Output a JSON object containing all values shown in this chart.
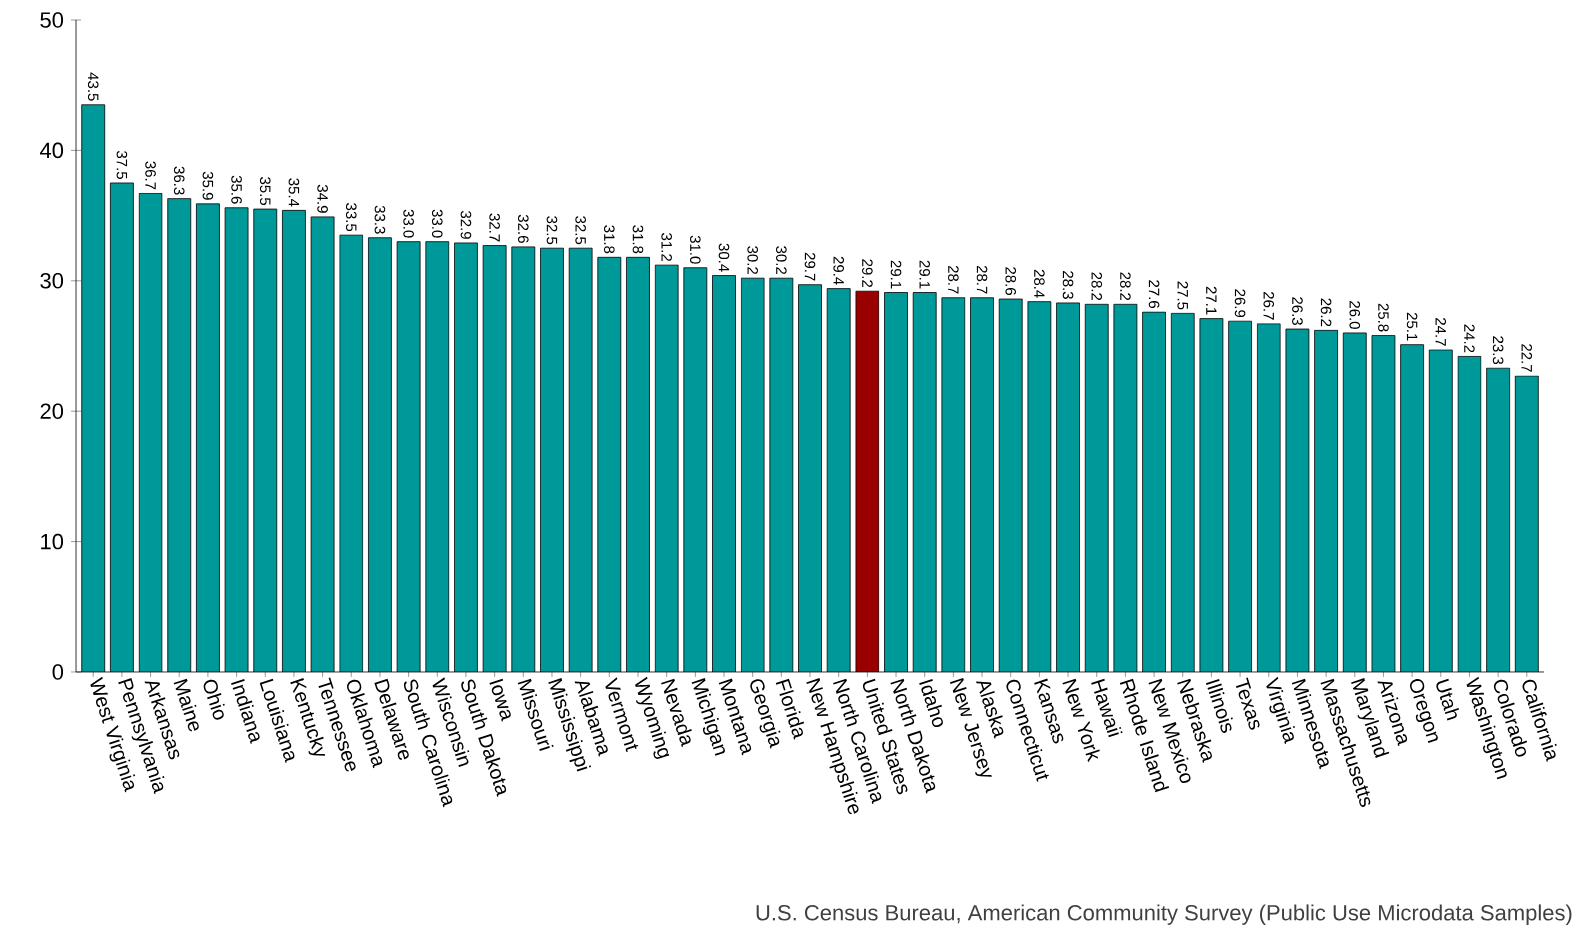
{
  "chart_data": {
    "type": "bar",
    "categories": [
      "West Virginia",
      "Pennsylvania",
      "Arkansas",
      "Maine",
      "Ohio",
      "Indiana",
      "Louisiana",
      "Kentucky",
      "Tennessee",
      "Oklahoma",
      "Delaware",
      "South Carolina",
      "Wisconsin",
      "South Dakota",
      "Iowa",
      "Missouri",
      "Mississippi",
      "Alabama",
      "Vermont",
      "Wyoming",
      "Nevada",
      "Michigan",
      "Montana",
      "Georgia",
      "Florida",
      "New Hampshire",
      "North Carolina",
      "United States",
      "North Dakota",
      "Idaho",
      "New Jersey",
      "Alaska",
      "Connecticut",
      "Kansas",
      "New York",
      "Hawaii",
      "Rhode Island",
      "New Mexico",
      "Nebraska",
      "Illinois",
      "Texas",
      "Virginia",
      "Minnesota",
      "Massachusetts",
      "Maryland",
      "Arizona",
      "Oregon",
      "Utah",
      "Washington",
      "Colorado",
      "California"
    ],
    "values": [
      43.5,
      37.5,
      36.7,
      36.3,
      35.9,
      35.6,
      35.5,
      35.4,
      34.9,
      33.5,
      33.3,
      33.0,
      33.0,
      32.9,
      32.7,
      32.6,
      32.5,
      32.5,
      31.8,
      31.8,
      31.2,
      31.0,
      30.4,
      30.2,
      30.2,
      29.7,
      29.4,
      29.2,
      29.1,
      29.1,
      28.7,
      28.7,
      28.6,
      28.4,
      28.3,
      28.2,
      28.2,
      27.6,
      27.5,
      27.1,
      26.9,
      26.7,
      26.3,
      26.2,
      26.0,
      25.8,
      25.1,
      24.7,
      24.2,
      23.3,
      22.7
    ],
    "colors": [
      "#009999",
      "#009999",
      "#009999",
      "#009999",
      "#009999",
      "#009999",
      "#009999",
      "#009999",
      "#009999",
      "#009999",
      "#009999",
      "#009999",
      "#009999",
      "#009999",
      "#009999",
      "#009999",
      "#009999",
      "#009999",
      "#009999",
      "#009999",
      "#009999",
      "#009999",
      "#009999",
      "#009999",
      "#009999",
      "#009999",
      "#009999",
      "#990000",
      "#009999",
      "#009999",
      "#009999",
      "#009999",
      "#009999",
      "#009999",
      "#009999",
      "#009999",
      "#009999",
      "#009999",
      "#009999",
      "#009999",
      "#009999",
      "#009999",
      "#009999",
      "#009999",
      "#009999",
      "#009999",
      "#009999",
      "#009999",
      "#009999",
      "#009999",
      "#009999"
    ],
    "value_labels": [
      "43.5",
      "37.5",
      "36.7",
      "36.3",
      "35.9",
      "35.6",
      "35.5",
      "35.4",
      "34.9",
      "33.5",
      "33.3",
      "33.0",
      "33.0",
      "32.9",
      "32.7",
      "32.6",
      "32.5",
      "32.5",
      "31.8",
      "31.8",
      "31.2",
      "31.0",
      "30.4",
      "30.2",
      "30.2",
      "29.7",
      "29.4",
      "29.2",
      "29.1",
      "29.1",
      "28.7",
      "28.7",
      "28.6",
      "28.4",
      "28.3",
      "28.2",
      "28.2",
      "27.6",
      "27.5",
      "27.1",
      "26.9",
      "26.7",
      "26.3",
      "26.2",
      "26.0",
      "25.8",
      "25.1",
      "24.7",
      "24.2",
      "23.3",
      "22.7"
    ],
    "ylim": [
      0,
      50
    ],
    "yticks": [
      0,
      10,
      20,
      30,
      40,
      50
    ],
    "grid": false,
    "annotations": [
      "U.S. Census Bureau, American Community Survey (Public Use Microdata Samples)"
    ]
  }
}
